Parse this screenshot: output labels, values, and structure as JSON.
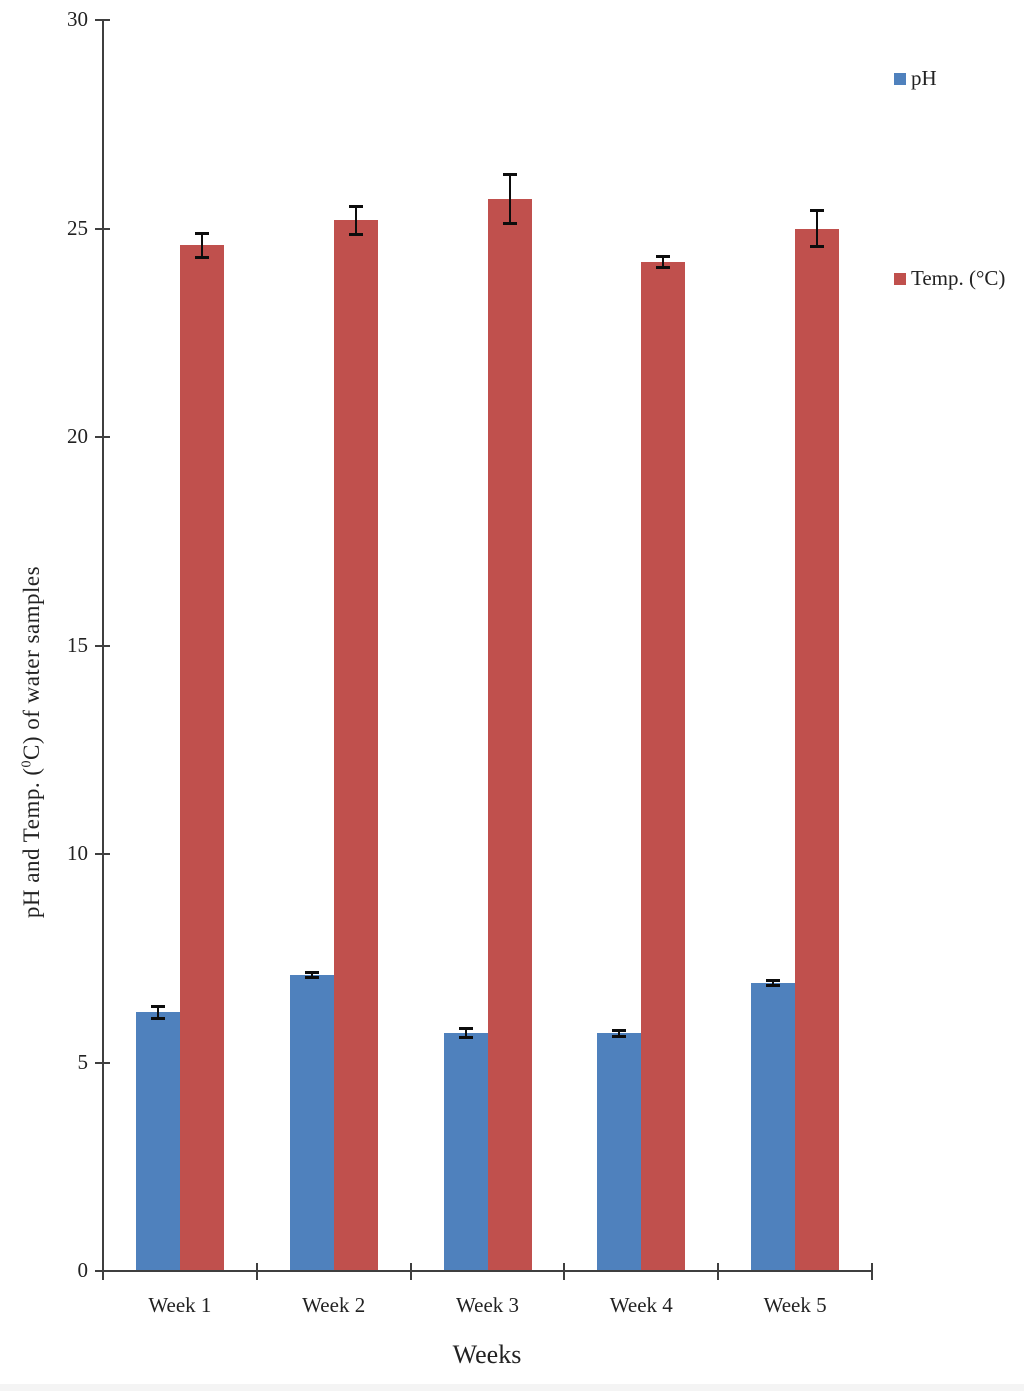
{
  "chart_data": {
    "type": "bar",
    "categories": [
      "Week 1",
      "Week 2",
      "Week 3",
      "Week 4",
      "Week 5"
    ],
    "series": [
      {
        "name": "pH",
        "color": "#4F81BD",
        "values": [
          6.2,
          7.1,
          5.7,
          5.7,
          6.9
        ],
        "errors": [
          0.15,
          0.08,
          0.12,
          0.08,
          0.07
        ]
      },
      {
        "name": "Temp. (°C)",
        "color": "#C0504D",
        "values": [
          24.6,
          25.2,
          25.7,
          24.2,
          25.0
        ],
        "errors": [
          0.3,
          0.35,
          0.6,
          0.15,
          0.45
        ]
      }
    ],
    "title": "",
    "xlabel": "Weeks",
    "ylabel": "pH and Temp. (0C) of water samples",
    "ylabel_parts": {
      "prefix": "pH and Temp. (",
      "sup": "0",
      "suffix": "C) of water samples"
    },
    "ylim": [
      0,
      30
    ],
    "yticks": [
      "0",
      "5",
      "10",
      "15",
      "20",
      "25",
      "30"
    ],
    "grid": false,
    "error_bars": true,
    "legend_position": "right"
  }
}
